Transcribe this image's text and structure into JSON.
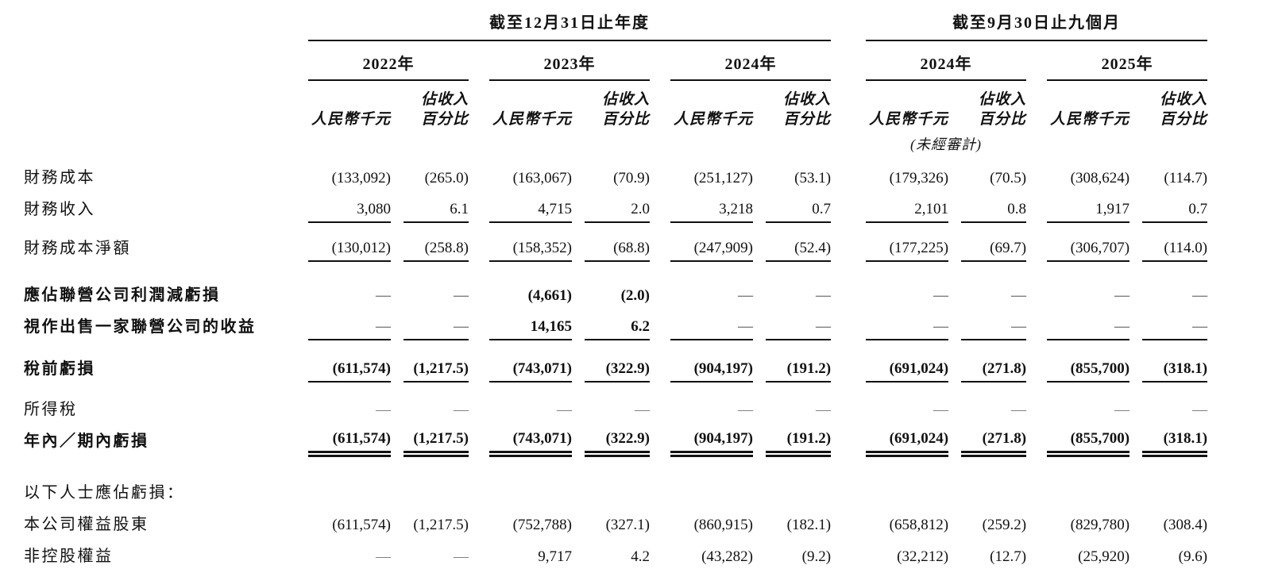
{
  "groups": [
    {
      "title": "截至12月31日止年度",
      "years": [
        "2022年",
        "2023年",
        "2024年"
      ]
    },
    {
      "title": "截至9月30日止九個月",
      "years": [
        "2024年",
        "2025年"
      ]
    }
  ],
  "columns": {
    "amount_header": "人民幣千元",
    "pct_header_line1": "佔收入",
    "pct_header_line2": "百分比",
    "unaudited_note": "(未經審計)"
  },
  "rows": [
    {
      "label": "財務成本",
      "bold": false,
      "space_before": 6,
      "rule_after": "none",
      "values": [
        "(133,092)",
        "(265.0)",
        "(163,067)",
        "(70.9)",
        "(251,127)",
        "(53.1)",
        "(179,326)",
        "(70.5)",
        "(308,624)",
        "(114.7)"
      ]
    },
    {
      "label": "財務收入",
      "bold": false,
      "rule_after": "single",
      "values": [
        "3,080",
        "6.1",
        "4,715",
        "2.0",
        "3,218",
        "0.7",
        "2,101",
        "0.8",
        "1,917",
        "0.7"
      ]
    },
    {
      "label": "財務成本淨額",
      "bold": false,
      "rule_after": "single",
      "values": [
        "(130,012)",
        "(258.8)",
        "(158,352)",
        "(68.8)",
        "(247,909)",
        "(52.4)",
        "(177,225)",
        "(69.7)",
        "(306,707)",
        "(114.0)"
      ]
    },
    {
      "label": "應佔聯營公司利潤減虧損",
      "bold": true,
      "space_before": 10,
      "rule_after": "none",
      "values": [
        "—",
        "—",
        "(4,661)",
        "(2.0)",
        "—",
        "—",
        "—",
        "—",
        "—",
        "—"
      ]
    },
    {
      "label": "視作出售一家聯營公司的收益",
      "bold": true,
      "rule_after": "single",
      "values": [
        "—",
        "—",
        "14,165",
        "6.2",
        "—",
        "—",
        "—",
        "—",
        "—",
        "—"
      ]
    },
    {
      "label": "稅前虧損",
      "bold": true,
      "space_before": 4,
      "rule_after": "single",
      "values": [
        "(611,574)",
        "(1,217.5)",
        "(743,071)",
        "(322.9)",
        "(904,197)",
        "(191.2)",
        "(691,024)",
        "(271.8)",
        "(855,700)",
        "(318.1)"
      ]
    },
    {
      "label": "所得稅",
      "bold": false,
      "space_before": 2,
      "rule_after": "none",
      "values": [
        "—",
        "—",
        "—",
        "—",
        "—",
        "—",
        "—",
        "—",
        "—",
        "—"
      ]
    },
    {
      "label": "年內／期內虧損",
      "bold": true,
      "rule_after": "double",
      "values": [
        "(611,574)",
        "(1,217.5)",
        "(743,071)",
        "(322.9)",
        "(904,197)",
        "(191.2)",
        "(691,024)",
        "(271.8)",
        "(855,700)",
        "(318.1)"
      ]
    },
    {
      "label": "以下人士應佔虧損：",
      "bold": false,
      "section": true,
      "space_before": 16,
      "rule_after": "none",
      "values": []
    },
    {
      "label": "本公司權益股東",
      "bold": false,
      "rule_after": "none",
      "values": [
        "(611,574)",
        "(1,217.5)",
        "(752,788)",
        "(327.1)",
        "(860,915)",
        "(182.1)",
        "(658,812)",
        "(259.2)",
        "(829,780)",
        "(308.4)"
      ]
    },
    {
      "label": "非控股權益",
      "bold": false,
      "rule_after": "none",
      "values": [
        "—",
        "—",
        "9,717",
        "4.2",
        "(43,282)",
        "(9.2)",
        "(32,212)",
        "(12.7)",
        "(25,920)",
        "(9.6)"
      ]
    }
  ]
}
